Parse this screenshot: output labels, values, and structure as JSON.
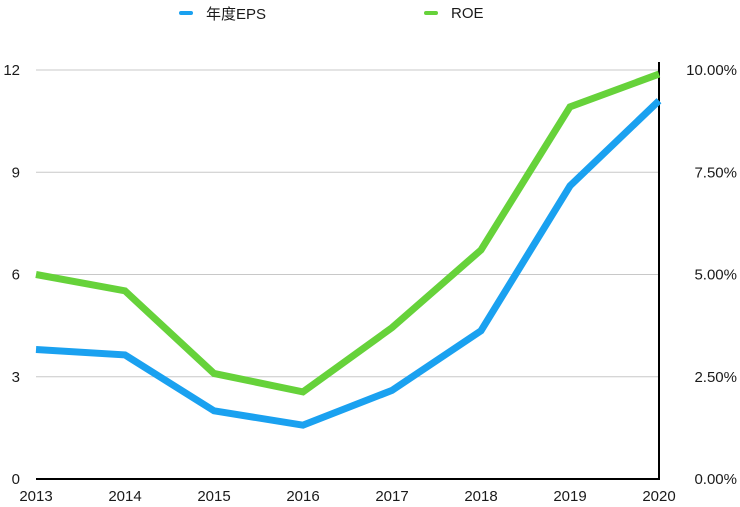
{
  "legend": [
    {
      "label": "年度EPS",
      "color": "#1aa1f0"
    },
    {
      "label": "ROE",
      "color": "#66d23a"
    }
  ],
  "chart_data": {
    "type": "line",
    "title": "",
    "xlabel": "",
    "ylabel": "",
    "categories": [
      "2013",
      "2014",
      "2015",
      "2016",
      "2017",
      "2018",
      "2019",
      "2020"
    ],
    "series": [
      {
        "name": "年度EPS",
        "axis": "left",
        "color": "#1aa1f0",
        "values": [
          3.8,
          3.64,
          2.0,
          1.58,
          2.6,
          4.35,
          8.6,
          11.1
        ]
      },
      {
        "name": "ROE",
        "axis": "right",
        "unit": "%",
        "color": "#66d23a",
        "values": [
          5.0,
          4.6,
          2.58,
          2.13,
          3.7,
          5.6,
          9.1,
          9.9
        ]
      }
    ],
    "y_left": {
      "ticks": [
        "0",
        "3",
        "6",
        "9",
        "12"
      ],
      "range": [
        0,
        12
      ]
    },
    "y_right": {
      "ticks": [
        "0.00%",
        "2.50%",
        "5.00%",
        "7.50%",
        "10.00%"
      ],
      "range": [
        0,
        10
      ]
    },
    "grid": true,
    "legend_position": "top"
  }
}
